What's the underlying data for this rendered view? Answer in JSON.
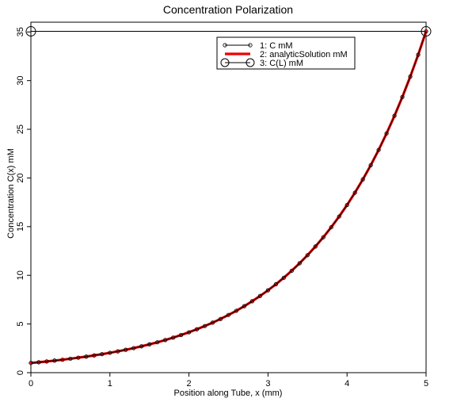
{
  "chart_data": {
    "type": "line",
    "title": "Concentration Polarization",
    "xlabel": "Position along Tube, x (mm)",
    "ylabel": "Concentration C(x) mM",
    "xlim": [
      0,
      5
    ],
    "ylim": [
      0,
      36
    ],
    "x_ticks": [
      "0",
      "1",
      "2",
      "3",
      "4",
      "5"
    ],
    "y_ticks": [
      "0",
      "5",
      "10",
      "15",
      "20",
      "25",
      "30",
      "35"
    ],
    "grid": false,
    "legend_position": "top-right",
    "series": [
      {
        "name": "1: C mM",
        "style": "line-with-small-circle-markers",
        "color": "#000000",
        "x": [
          0,
          0.1,
          0.2,
          0.3,
          0.4,
          0.5,
          0.6,
          0.7,
          0.8,
          0.9,
          1.0,
          1.1,
          1.2,
          1.3,
          1.4,
          1.5,
          1.6,
          1.7,
          1.8,
          1.9,
          2.0,
          2.1,
          2.2,
          2.3,
          2.4,
          2.5,
          2.6,
          2.7,
          2.8,
          2.9,
          3.0,
          3.1,
          3.2,
          3.3,
          3.4,
          3.5,
          3.6,
          3.7,
          3.8,
          3.9,
          4.0,
          4.1,
          4.2,
          4.3,
          4.4,
          4.5,
          4.6,
          4.7,
          4.8,
          4.9,
          5.0
        ],
        "y": [
          1.0,
          1.07,
          1.15,
          1.24,
          1.33,
          1.43,
          1.54,
          1.65,
          1.77,
          1.9,
          2.04,
          2.19,
          2.35,
          2.52,
          2.71,
          2.91,
          3.12,
          3.35,
          3.6,
          3.87,
          4.15,
          4.46,
          4.79,
          5.14,
          5.52,
          5.93,
          6.36,
          6.83,
          7.34,
          7.88,
          8.46,
          9.08,
          9.75,
          10.47,
          11.24,
          12.07,
          12.96,
          13.91,
          14.94,
          16.04,
          17.22,
          18.49,
          19.85,
          21.31,
          22.88,
          24.57,
          26.38,
          28.32,
          30.41,
          32.65,
          35.06
        ]
      },
      {
        "name": "2: analyticSolution mM",
        "style": "thick-line",
        "color": "#ee0000",
        "x": [
          0,
          0.1,
          0.2,
          0.3,
          0.4,
          0.5,
          0.6,
          0.7,
          0.8,
          0.9,
          1.0,
          1.1,
          1.2,
          1.3,
          1.4,
          1.5,
          1.6,
          1.7,
          1.8,
          1.9,
          2.0,
          2.1,
          2.2,
          2.3,
          2.4,
          2.5,
          2.6,
          2.7,
          2.8,
          2.9,
          3.0,
          3.1,
          3.2,
          3.3,
          3.4,
          3.5,
          3.6,
          3.7,
          3.8,
          3.9,
          4.0,
          4.1,
          4.2,
          4.3,
          4.4,
          4.5,
          4.6,
          4.7,
          4.8,
          4.9,
          5.0
        ],
        "y": [
          1.0,
          1.07,
          1.15,
          1.24,
          1.33,
          1.43,
          1.54,
          1.65,
          1.77,
          1.9,
          2.04,
          2.19,
          2.35,
          2.52,
          2.71,
          2.91,
          3.12,
          3.35,
          3.6,
          3.87,
          4.15,
          4.46,
          4.79,
          5.14,
          5.52,
          5.93,
          6.36,
          6.83,
          7.34,
          7.88,
          8.46,
          9.08,
          9.75,
          10.47,
          11.24,
          12.07,
          12.96,
          13.91,
          14.94,
          16.04,
          17.22,
          18.49,
          19.85,
          21.31,
          22.88,
          24.57,
          26.38,
          28.32,
          30.41,
          32.65,
          35.06
        ]
      },
      {
        "name": "3: C(L) mM",
        "style": "line-with-large-circle-markers",
        "color": "#000000",
        "x": [
          0,
          5
        ],
        "y": [
          35.06,
          35.06
        ]
      }
    ]
  }
}
